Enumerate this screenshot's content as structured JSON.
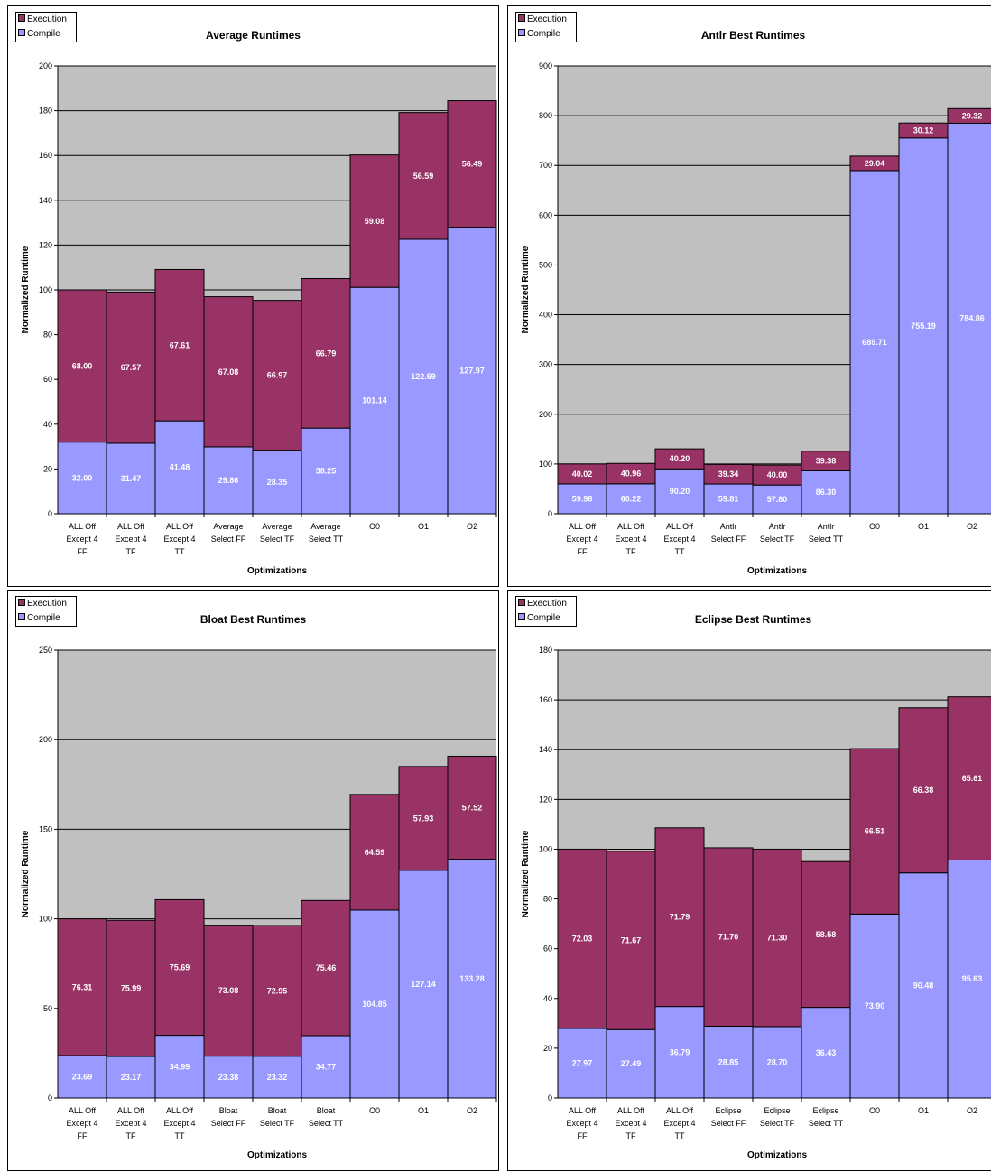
{
  "colors": {
    "execution": "#993366",
    "compile": "#9999ff",
    "plot_bg": "#c0c0c0"
  },
  "chart_data": [
    {
      "type": "bar",
      "stacked": true,
      "title": "Average Runtimes",
      "xlabel": "Optimizations",
      "ylabel": "Normalized Runtime",
      "ylim": [
        0,
        200
      ],
      "yticks": [
        0,
        20,
        40,
        60,
        80,
        100,
        120,
        140,
        160,
        180,
        200
      ],
      "legend": {
        "position": "top-left",
        "entries": [
          "Execution",
          "Compile"
        ]
      },
      "grid": true,
      "categories": [
        [
          "ALL Off",
          "Except 4",
          "FF"
        ],
        [
          "ALL Off",
          "Except 4",
          "TF"
        ],
        [
          "ALL Off",
          "Except 4",
          "TT"
        ],
        [
          "Average",
          "Select FF"
        ],
        [
          "Average",
          "Select TF"
        ],
        [
          "Average",
          "Select TT"
        ],
        [
          "O0"
        ],
        [
          "O1"
        ],
        [
          "O2"
        ]
      ],
      "series": [
        {
          "name": "Compile",
          "values": [
            32.0,
            31.47,
            41.48,
            29.86,
            28.35,
            38.25,
            101.14,
            122.59,
            127.97
          ],
          "labels": [
            "32.00",
            "31.47",
            "41.48",
            "29.86",
            "28.35",
            "38.25",
            "101.14",
            "122.59",
            "127.97"
          ]
        },
        {
          "name": "Execution",
          "values": [
            68.0,
            67.57,
            67.61,
            67.08,
            66.97,
            66.79,
            59.08,
            56.59,
            56.49
          ],
          "labels": [
            "68.00",
            "67.57",
            "67.61",
            "67.08",
            "66.97",
            "66.79",
            "59.08",
            "56.59",
            "56.49"
          ]
        }
      ]
    },
    {
      "type": "bar",
      "stacked": true,
      "title": "Antlr Best Runtimes",
      "xlabel": "Optimizations",
      "ylabel": "Normalized Runtime",
      "ylim": [
        0,
        900
      ],
      "yticks": [
        0,
        100,
        200,
        300,
        400,
        500,
        600,
        700,
        800,
        900
      ],
      "legend": {
        "position": "top-left",
        "entries": [
          "Execution",
          "Compile"
        ]
      },
      "grid": true,
      "categories": [
        [
          "ALL Off",
          "Except 4",
          "FF"
        ],
        [
          "ALL Off",
          "Except 4",
          "TF"
        ],
        [
          "ALL Off",
          "Except 4",
          "TT"
        ],
        [
          "Antlr",
          "Select FF"
        ],
        [
          "Antlr",
          "Select TF"
        ],
        [
          "Antlr",
          "Select TT"
        ],
        [
          "O0"
        ],
        [
          "O1"
        ],
        [
          "O2"
        ]
      ],
      "series": [
        {
          "name": "Compile",
          "values": [
            59.98,
            60.22,
            90.2,
            59.81,
            57.8,
            86.3,
            689.71,
            755.19,
            784.86
          ],
          "labels": [
            "59.98",
            "60.22",
            "90.20",
            "59.81",
            "57.80",
            "86.30",
            "689.71",
            "755.19",
            "784.86"
          ]
        },
        {
          "name": "Execution",
          "values": [
            40.02,
            40.96,
            40.2,
            39.34,
            40.0,
            39.38,
            29.04,
            30.12,
            29.32
          ],
          "labels": [
            "40.02",
            "40.96",
            "40.20",
            "39.34",
            "40.00",
            "39.38",
            "29.04",
            "30.12",
            "29.32"
          ]
        }
      ]
    },
    {
      "type": "bar",
      "stacked": true,
      "title": "Bloat Best Runtimes",
      "xlabel": "Optimizations",
      "ylabel": "Normalized Runtime",
      "ylim": [
        0,
        250
      ],
      "yticks": [
        0,
        50,
        100,
        150,
        200,
        250
      ],
      "legend": {
        "position": "top-left",
        "entries": [
          "Execution",
          "Compile"
        ]
      },
      "grid": true,
      "categories": [
        [
          "ALL Off",
          "Except 4",
          "FF"
        ],
        [
          "ALL Off",
          "Except 4",
          "TF"
        ],
        [
          "ALL Off",
          "Except 4",
          "TT"
        ],
        [
          "Bloat",
          "Select FF"
        ],
        [
          "Bloat",
          "Select TF"
        ],
        [
          "Bloat",
          "Select TT"
        ],
        [
          "O0"
        ],
        [
          "O1"
        ],
        [
          "O2"
        ]
      ],
      "series": [
        {
          "name": "Compile",
          "values": [
            23.69,
            23.17,
            34.99,
            23.38,
            23.32,
            34.77,
            104.85,
            127.14,
            133.28
          ],
          "labels": [
            "23.69",
            "23.17",
            "34.99",
            "23.38",
            "23.32",
            "34.77",
            "104.85",
            "127.14",
            "133.28"
          ]
        },
        {
          "name": "Execution",
          "values": [
            76.31,
            75.99,
            75.69,
            73.08,
            72.95,
            75.46,
            64.59,
            57.93,
            57.52
          ],
          "labels": [
            "76.31",
            "75.99",
            "75.69",
            "73.08",
            "72.95",
            "75.46",
            "64.59",
            "57.93",
            "57.52"
          ]
        }
      ]
    },
    {
      "type": "bar",
      "stacked": true,
      "title": "Eclipse Best Runtimes",
      "xlabel": "Optimizations",
      "ylabel": "Normalized Runtime",
      "ylim": [
        0,
        180
      ],
      "yticks": [
        0,
        20,
        40,
        60,
        80,
        100,
        120,
        140,
        160,
        180
      ],
      "legend": {
        "position": "top-left",
        "entries": [
          "Execution",
          "Compile"
        ]
      },
      "grid": true,
      "categories": [
        [
          "ALL Off",
          "Except 4",
          "FF"
        ],
        [
          "ALL Off",
          "Except 4",
          "TF"
        ],
        [
          "ALL Off",
          "Except 4",
          "TT"
        ],
        [
          "Eclipse",
          "Select FF"
        ],
        [
          "Eclipse",
          "Select TF"
        ],
        [
          "Eclipse",
          "Select TT"
        ],
        [
          "O0"
        ],
        [
          "O1"
        ],
        [
          "O2"
        ]
      ],
      "series": [
        {
          "name": "Compile",
          "values": [
            27.97,
            27.49,
            36.79,
            28.85,
            28.7,
            36.43,
            73.9,
            90.48,
            95.63
          ],
          "labels": [
            "27.97",
            "27.49",
            "36.79",
            "28.85",
            "28.70",
            "36.43",
            "73.90",
            "90.48",
            "95.63"
          ]
        },
        {
          "name": "Execution",
          "values": [
            72.03,
            71.67,
            71.79,
            71.7,
            71.3,
            58.58,
            66.51,
            66.38,
            65.61
          ],
          "labels": [
            "72.03",
            "71.67",
            "71.79",
            "71.70",
            "71.30",
            "58.58",
            "66.51",
            "66.38",
            "65.61"
          ]
        }
      ]
    }
  ]
}
